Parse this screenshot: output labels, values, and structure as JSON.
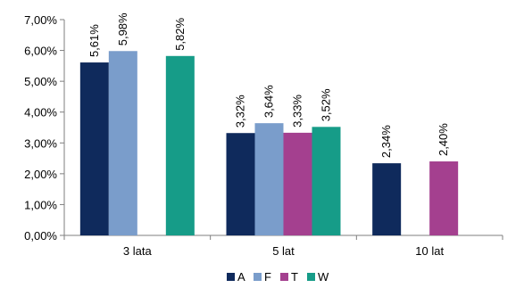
{
  "chart_data": {
    "type": "bar",
    "categories": [
      "3 lata",
      "5 lat",
      "10 lat"
    ],
    "series": [
      {
        "name": "A",
        "color": "#0F2A5C",
        "values": [
          5.61,
          3.32,
          2.34
        ],
        "labels": [
          "5,61%",
          "3,32%",
          "2,34%"
        ]
      },
      {
        "name": "F",
        "color": "#7A9DCB",
        "values": [
          5.98,
          3.64,
          null
        ],
        "labels": [
          "5,98%",
          "3,64%",
          null
        ]
      },
      {
        "name": "T",
        "color": "#A4408F",
        "values": [
          null,
          3.33,
          2.4
        ],
        "labels": [
          null,
          "3,33%",
          "2,40%"
        ]
      },
      {
        "name": "W",
        "color": "#169C88",
        "values": [
          5.82,
          3.52,
          null
        ],
        "labels": [
          "5,82%",
          "3,52%",
          null
        ]
      }
    ],
    "ylim": [
      0,
      7
    ],
    "yticks": [
      0,
      1,
      2,
      3,
      4,
      5,
      6,
      7
    ],
    "ytick_labels": [
      "0,00%",
      "1,00%",
      "2,00%",
      "3,00%",
      "4,00%",
      "5,00%",
      "6,00%",
      "7,00%"
    ],
    "title": "",
    "xlabel": "",
    "ylabel": "",
    "grid": false,
    "legend_position": "bottom"
  }
}
